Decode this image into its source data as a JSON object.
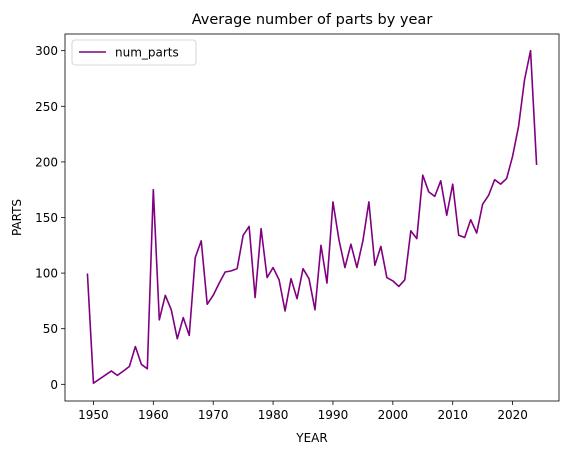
{
  "chart_data": {
    "type": "line",
    "title": "Average number of parts by year",
    "xlabel": "YEAR",
    "ylabel": "PARTS",
    "xlim": [
      1945.25,
      2027.75
    ],
    "ylim": [
      -15,
      315
    ],
    "xticks": [
      1950,
      1960,
      1970,
      1980,
      1990,
      2000,
      2010,
      2020
    ],
    "yticks": [
      0,
      50,
      100,
      150,
      200,
      250,
      300
    ],
    "grid": false,
    "legend_position": "upper left",
    "series": [
      {
        "name": "num_parts",
        "color": "#800080",
        "x": [
          1949,
          1950,
          1953,
          1954,
          1955,
          1956,
          1957,
          1958,
          1959,
          1960,
          1961,
          1962,
          1963,
          1964,
          1965,
          1966,
          1967,
          1968,
          1969,
          1970,
          1971,
          1972,
          1973,
          1974,
          1975,
          1976,
          1977,
          1978,
          1979,
          1980,
          1981,
          1982,
          1983,
          1984,
          1985,
          1986,
          1987,
          1988,
          1989,
          1990,
          1991,
          1992,
          1993,
          1994,
          1995,
          1996,
          1997,
          1998,
          1999,
          2000,
          2001,
          2002,
          2003,
          2004,
          2005,
          2006,
          2007,
          2008,
          2009,
          2010,
          2011,
          2012,
          2013,
          2014,
          2015,
          2016,
          2017,
          2018,
          2019,
          2020,
          2021,
          2022,
          2023,
          2024
        ],
        "y": [
          99,
          1,
          12,
          8,
          12,
          16,
          34,
          18,
          14,
          175,
          58,
          80,
          67,
          41,
          60,
          44,
          114,
          129,
          72,
          80,
          91,
          101,
          102,
          104,
          134,
          142,
          78,
          140,
          96,
          105,
          94,
          66,
          95,
          77,
          104,
          95,
          67,
          125,
          91,
          164,
          130,
          105,
          126,
          105,
          129,
          164,
          107,
          124,
          96,
          93,
          88,
          94,
          138,
          131,
          188,
          173,
          169,
          183,
          152,
          180,
          134,
          132,
          148,
          136,
          162,
          170,
          184,
          180,
          185,
          205,
          232,
          274,
          300,
          198
        ]
      }
    ]
  }
}
